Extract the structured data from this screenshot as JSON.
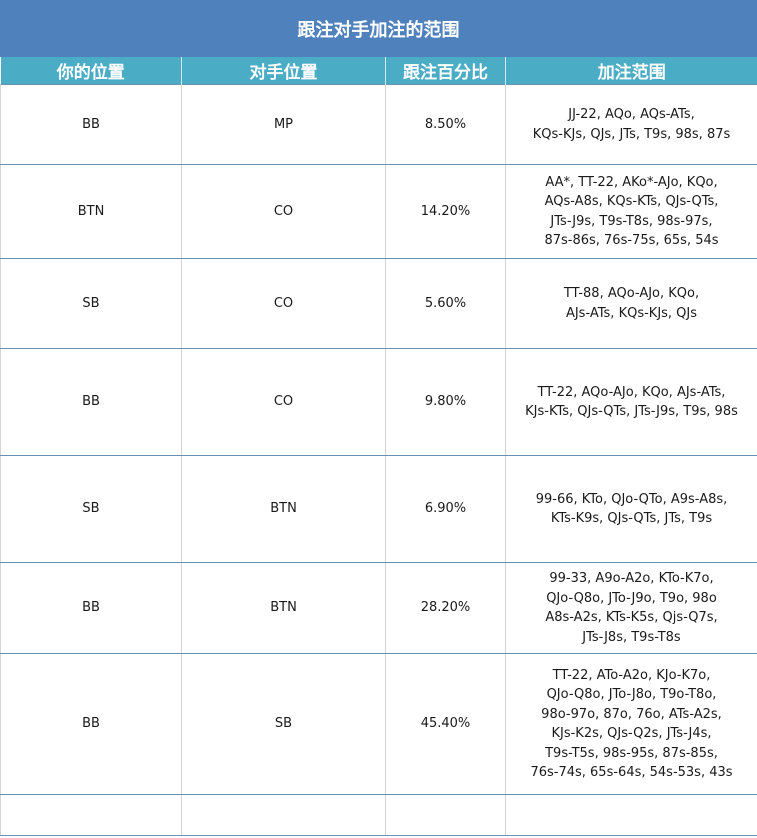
{
  "title": "跟注对手加注的范围",
  "headers": [
    "你的位置",
    "对手位置",
    "跟注百分比",
    "加注范围"
  ],
  "rows": [
    {
      "pos": "BB",
      "opp": "MP",
      "pct": "8.50%",
      "range": [
        "JJ-22, AQo, AQs-ATs,",
        "KQs-KJs, QJs, JTs, T9s, 98s, 87s"
      ]
    },
    {
      "pos": "BTN",
      "opp": "CO",
      "pct": "14.20%",
      "range": [
        "AA*, TT-22, AKo*-AJo, KQo,",
        "AQs-A8s, KQs-KTs, QJs-QTs,",
        "JTs-J9s, T9s-T8s, 98s-97s,",
        "87s-86s, 76s-75s, 65s, 54s"
      ]
    },
    {
      "pos": "SB",
      "opp": "CO",
      "pct": "5.60%",
      "range": [
        "TT-88, AQo-AJo, KQo,",
        "AJs-ATs, KQs-KJs, QJs"
      ]
    },
    {
      "pos": "BB",
      "opp": "CO",
      "pct": "9.80%",
      "range": [
        "TT-22, AQo-AJo, KQo, AJs-ATs,",
        "KJs-KTs, QJs-QTs, JTs-J9s, T9s, 98s"
      ]
    },
    {
      "pos": "SB",
      "opp": "BTN",
      "pct": "6.90%",
      "range": [
        "99-66, KTo, QJo-QTo, A9s-A8s,",
        "KTs-K9s, QJs-QTs, JTs, T9s"
      ]
    },
    {
      "pos": "BB",
      "opp": "BTN",
      "pct": "28.20%",
      "range": [
        "99-33, A9o-A2o, KTo-K7o,",
        "QJo-Q8o, JTo-J9o, T9o, 98o",
        "A8s-A2s, KTs-K5s, Qjs-Q7s,",
        "JTs-J8s, T9s-T8s"
      ]
    },
    {
      "pos": "BB",
      "opp": "SB",
      "pct": "45.40%",
      "range": [
        "TT-22, ATo-A2o, KJo-K7o,",
        "QJo-Q8o, JTo-J8o, T9o-T8o,",
        "98o-97o, 87o, 76o, ATs-A2s,",
        "KJs-K2s, QJs-Q2s, JTs-J4s,",
        "T9s-T5s, 98s-95s, 87s-85s,",
        "76s-74s, 65s-64s, 54s-53s, 43s"
      ]
    },
    {
      "pos": "",
      "opp": "",
      "pct": "",
      "range": []
    }
  ]
}
